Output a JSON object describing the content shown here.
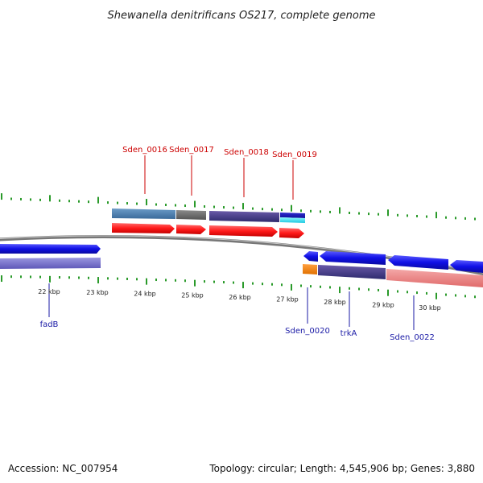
{
  "header": {
    "title": "Shewanella denitrificans OS217, complete genome"
  },
  "footer": {
    "accession": "Accession: NC_007954",
    "summary": "Topology: circular; Length: 4,545,906 bp; Genes: 3,880"
  },
  "scale": {
    "unit": "kbp",
    "tick_labels": [
      "22 kbp",
      "23 kbp",
      "24 kbp",
      "25 kbp",
      "26 kbp",
      "27 kbp",
      "28 kbp",
      "29 kbp",
      "30 kbp"
    ]
  },
  "genes": {
    "forward": [
      {
        "label": "Sden_0016",
        "color": "#cc0000"
      },
      {
        "label": "Sden_0017",
        "color": "#cc0000"
      },
      {
        "label": "Sden_0018",
        "color": "#cc0000"
      },
      {
        "label": "Sden_0019",
        "color": "#cc0000"
      }
    ],
    "reverse": [
      {
        "label": "fadB",
        "color": "#1a1aa6"
      },
      {
        "label": "Sden_0020",
        "color": "#1a1aa6"
      },
      {
        "label": "trkA",
        "color": "#1a1aa6"
      },
      {
        "label": "Sden_0022",
        "color": "#1a1aa6"
      }
    ]
  },
  "colors": {
    "forward_gene": "#ff1a1a",
    "reverse_gene": "#1010e6",
    "backbone": "#888888",
    "tick": "#2a9a2a"
  }
}
